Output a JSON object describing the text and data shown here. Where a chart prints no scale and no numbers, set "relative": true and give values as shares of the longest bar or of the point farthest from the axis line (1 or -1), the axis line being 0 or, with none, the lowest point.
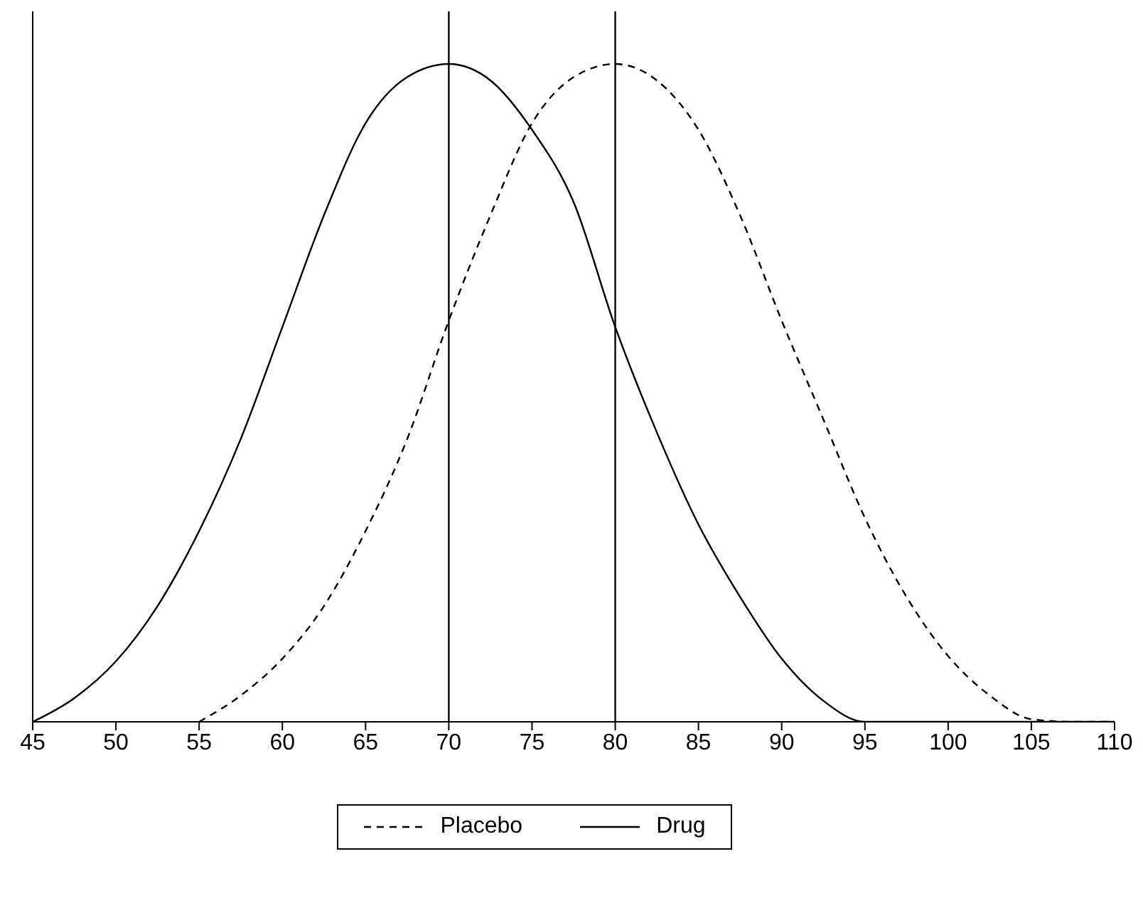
{
  "chart_data": {
    "type": "line",
    "relative": true,
    "xlim": [
      45,
      110
    ],
    "xticks": [
      45,
      50,
      55,
      60,
      65,
      70,
      75,
      80,
      85,
      90,
      95,
      100,
      105,
      110
    ],
    "marker": "none",
    "legend": "bottom",
    "grid": false,
    "series": [
      {
        "name": "Placebo",
        "color": "#000000",
        "line_style": "dashed",
        "x": [
          55,
          57.5,
          60,
          62.5,
          65,
          67.5,
          70,
          72.5,
          75,
          77.5,
          80,
          82.5,
          85,
          87.5,
          90,
          92.5,
          95,
          97.5,
          100,
          102.5,
          105,
          107.5,
          110
        ],
        "values": [
          0,
          0.04,
          0.096,
          0.176,
          0.29,
          0.43,
          0.61,
          0.77,
          0.91,
          0.98,
          1,
          0.975,
          0.9,
          0.77,
          0.61,
          0.46,
          0.31,
          0.19,
          0.1,
          0.04,
          0.004,
          0,
          0
        ]
      },
      {
        "name": "Drug",
        "color": "#000000",
        "line_style": "solid",
        "x": [
          45,
          47.5,
          50,
          52.5,
          55,
          57.5,
          60,
          62.5,
          65,
          67.5,
          70,
          72.5,
          75,
          77.5,
          80,
          82.5,
          85,
          87.5,
          90,
          92.5,
          95,
          97.5,
          100,
          105,
          110
        ],
        "values": [
          0,
          0.036,
          0.092,
          0.176,
          0.29,
          0.43,
          0.6,
          0.77,
          0.91,
          0.98,
          1,
          0.975,
          0.9,
          0.79,
          0.6,
          0.44,
          0.3,
          0.19,
          0.096,
          0.032,
          0,
          0,
          0,
          0,
          0
        ]
      }
    ],
    "ref_lines": [
      {
        "axis": "x",
        "value": 70,
        "color": "#000000"
      },
      {
        "axis": "x",
        "value": 80,
        "color": "#000000"
      }
    ]
  }
}
